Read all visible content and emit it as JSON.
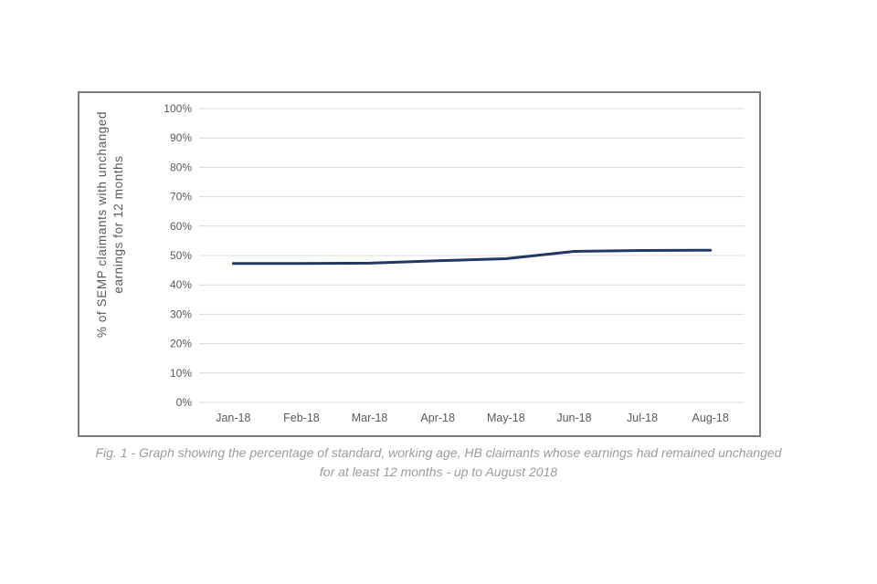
{
  "caption": {
    "line1": "Fig. 1 - Graph showing the percentage of standard, working age, HB claimants whose earnings had remained unchanged",
    "line2": "for at least 12 months - up to August 2018"
  },
  "chart_data": {
    "type": "line",
    "categories": [
      "Jan-18",
      "Feb-18",
      "Mar-18",
      "Apr-18",
      "May-18",
      "Jun-18",
      "Jul-18",
      "Aug-18"
    ],
    "values": [
      47.3,
      47.3,
      47.4,
      48.2,
      48.9,
      51.4,
      51.7,
      51.8
    ],
    "ylabel": "% of SEMP claimants with unchanged earnings for 12 months",
    "ylabel_lines": [
      "% of SEMP claimants with unchanged",
      "earnings for 12 months"
    ],
    "ylim": [
      0,
      100
    ],
    "ytick_step": 10,
    "ytick_suffix": "%",
    "grid": true,
    "legend": false,
    "line_color": "#1f3864",
    "grid_color": "#d9d9d9",
    "axis_text_color": "#595959",
    "border_color": "#7a7a7a",
    "caption_color": "#9b9b9b"
  }
}
